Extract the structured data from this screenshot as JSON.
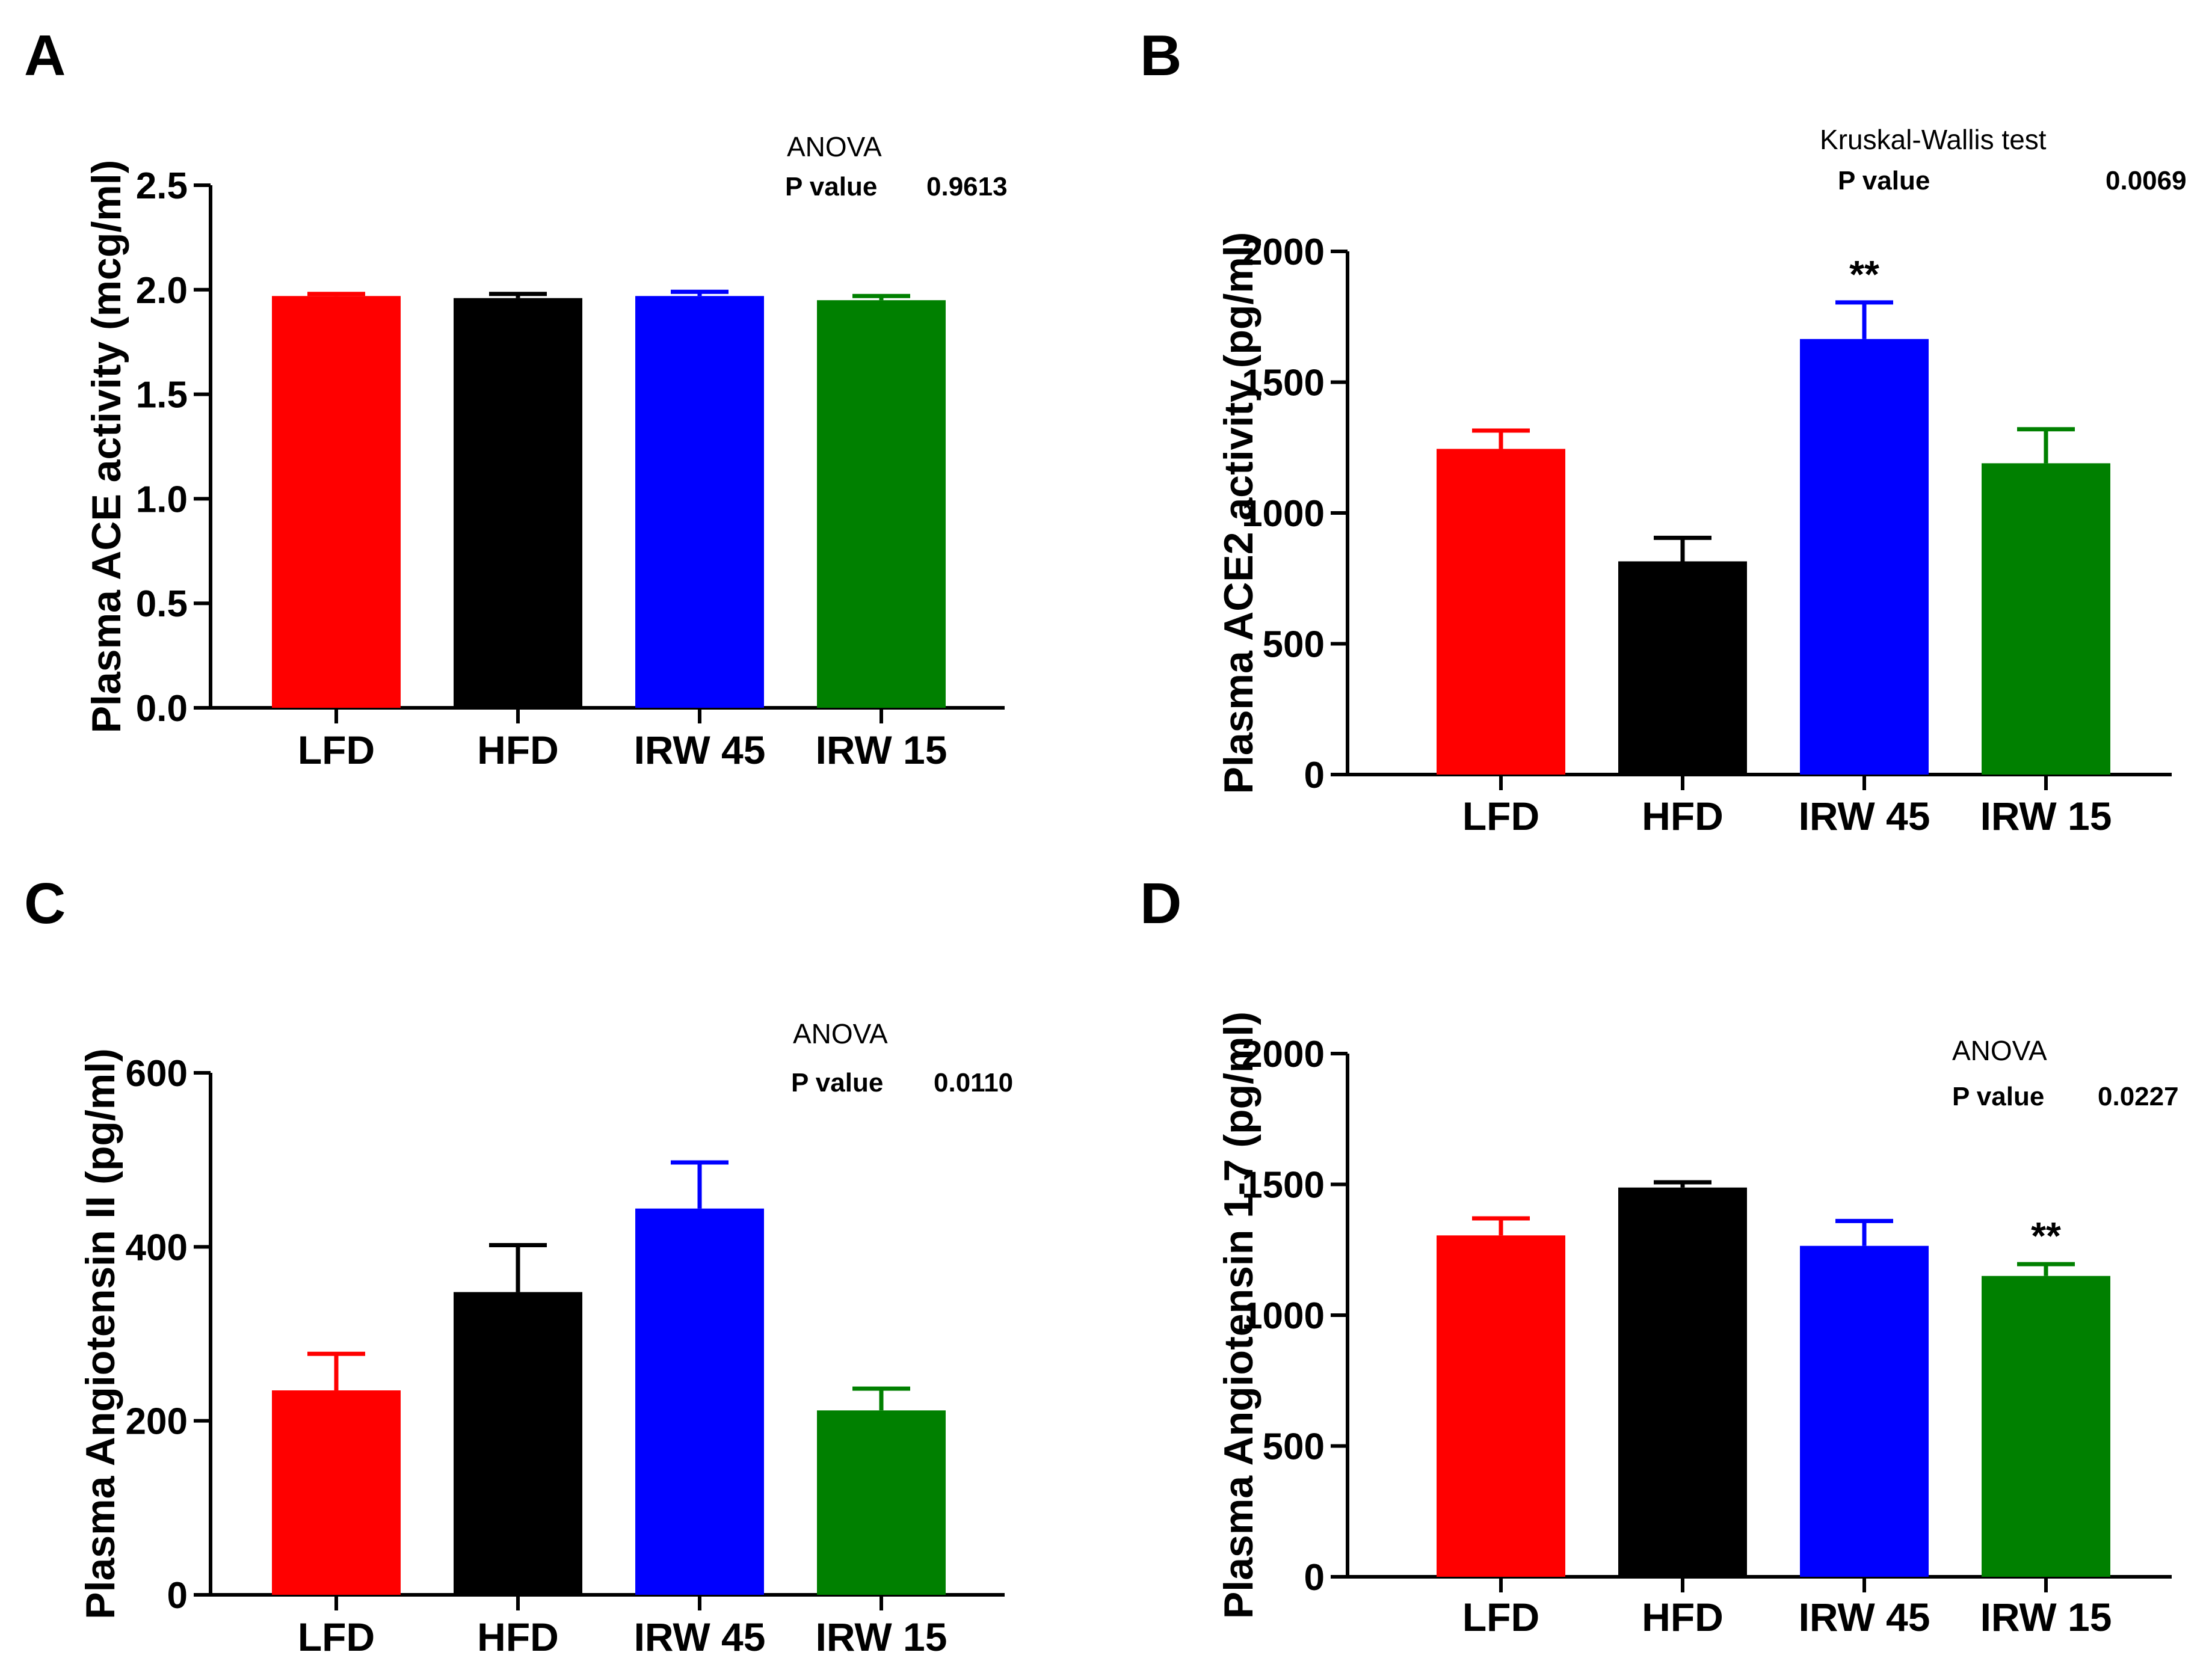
{
  "chart_data": [
    {
      "panel": "A",
      "type": "bar",
      "categories": [
        "LFD",
        "HFD",
        "IRW 45",
        "IRW 15"
      ],
      "values": [
        1.97,
        1.96,
        1.97,
        1.95
      ],
      "errors": [
        0.01,
        0.02,
        0.02,
        0.02
      ],
      "colors": [
        "#ff0000",
        "#000000",
        "#0000ff",
        "#008000"
      ],
      "ylabel": "Plasma ACE activity (mcg/ml)",
      "ylim": [
        0,
        2.5
      ],
      "yticks": [
        "0.0",
        "0.5",
        "1.0",
        "1.5",
        "2.0",
        "2.5"
      ],
      "stat_test": "ANOVA",
      "p_label": "P value",
      "p_value": "0.9613",
      "significance": [
        "",
        "",
        "",
        ""
      ]
    },
    {
      "panel": "B",
      "type": "bar",
      "categories": [
        "LFD",
        "HFD",
        "IRW 45",
        "IRW 15"
      ],
      "values": [
        1245,
        815,
        1665,
        1190
      ],
      "errors": [
        70,
        90,
        140,
        130
      ],
      "colors": [
        "#ff0000",
        "#000000",
        "#0000ff",
        "#008000"
      ],
      "ylabel": "Plasma ACE2 activity (pg/ml)",
      "ylim": [
        0,
        2000
      ],
      "yticks": [
        "0",
        "500",
        "1000",
        "1500",
        "2000"
      ],
      "stat_test": "Kruskal-Wallis test",
      "p_label": "P value",
      "p_value": "0.0069",
      "significance": [
        "",
        "",
        "**",
        ""
      ]
    },
    {
      "panel": "C",
      "type": "bar",
      "categories": [
        "LFD",
        "HFD",
        "IRW 45",
        "IRW 15"
      ],
      "values": [
        235,
        348,
        444,
        212
      ],
      "errors": [
        42,
        54,
        53,
        25
      ],
      "colors": [
        "#ff0000",
        "#000000",
        "#0000ff",
        "#008000"
      ],
      "ylabel": "Plasma Angiotensin II (pg/ml)",
      "ylim": [
        0,
        600
      ],
      "yticks": [
        "0",
        "200",
        "400",
        "600"
      ],
      "stat_test": "ANOVA",
      "p_label": "P value",
      "p_value": "0.0110",
      "significance": [
        "",
        "",
        "",
        ""
      ]
    },
    {
      "panel": "D",
      "type": "bar",
      "categories": [
        "LFD",
        "HFD",
        "IRW 45",
        "IRW 15"
      ],
      "values": [
        1305,
        1488,
        1265,
        1150
      ],
      "errors": [
        65,
        20,
        95,
        45
      ],
      "colors": [
        "#ff0000",
        "#000000",
        "#0000ff",
        "#008000"
      ],
      "ylabel": "Plasma Angiotensin 1-7 (pg/ml)",
      "ylim": [
        0,
        2000
      ],
      "yticks": [
        "0",
        "500",
        "1000",
        "1500",
        "2000"
      ],
      "stat_test": "ANOVA",
      "p_label": "P value",
      "p_value": "0.0227",
      "significance": [
        "",
        "",
        "",
        "**"
      ]
    }
  ]
}
